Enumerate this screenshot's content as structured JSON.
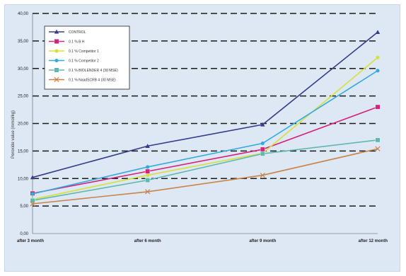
{
  "chart_data": {
    "type": "line",
    "ylabel": "Peroxide value (mmol/kg)",
    "ylim": [
      0,
      40
    ],
    "yticks": [
      "0,00",
      "5,00",
      "10,00",
      "15,00",
      "20,00",
      "25,00",
      "30,00",
      "35,00",
      "40,00"
    ],
    "categories": [
      "after 3 month",
      "after 6 month",
      "after 9 month",
      "after 12 month"
    ],
    "grid": true,
    "legend_position": "top-left",
    "series": [
      {
        "name": "CONTROL",
        "color": "#3a3a8c",
        "marker": "triangle",
        "values": [
          10.2,
          15.9,
          19.8,
          36.6
        ]
      },
      {
        "name": "0.1 % B H",
        "color": "#d4237a",
        "marker": "square",
        "values": [
          7.3,
          11.3,
          15.3,
          23.0
        ]
      },
      {
        "name": "0.1 % Competitor 1",
        "color": "#d6e03a",
        "marker": "circle",
        "values": [
          6.2,
          10.6,
          14.6,
          32.0
        ]
      },
      {
        "name": "0.1 % Competitor 2",
        "color": "#33aadd",
        "marker": "circle",
        "values": [
          7.2,
          12.1,
          16.4,
          29.6
        ]
      },
      {
        "name": "0.1 % BIOLENDER 4 (30 MSE)",
        "color": "#5fb8b0",
        "marker": "square",
        "values": [
          6.0,
          9.7,
          14.5,
          17.0
        ]
      },
      {
        "name": "0.1 % NaadSCRB 4 (30 MSE)",
        "color": "#c8844a",
        "marker": "x",
        "values": [
          5.4,
          7.6,
          10.6,
          15.4
        ]
      }
    ]
  }
}
